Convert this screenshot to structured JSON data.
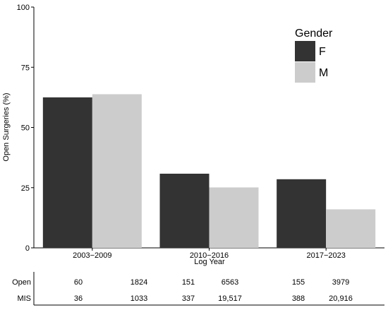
{
  "chart_data": {
    "type": "bar",
    "title": "",
    "xlabel": "Log Year",
    "ylabel": "Open Surgeries (%)",
    "ylim": [
      0,
      100
    ],
    "yticks": [
      0,
      25,
      50,
      75,
      100
    ],
    "categories": [
      "2003−2009",
      "2010−2016",
      "2017−2023"
    ],
    "legend": {
      "title": "Gender",
      "placement": "top-right"
    },
    "series": [
      {
        "name": "F",
        "color": "#333333",
        "values": [
          62.5,
          30.8,
          28.5
        ]
      },
      {
        "name": "M",
        "color": "#cccccc",
        "values": [
          63.8,
          25.1,
          16.0
        ]
      }
    ],
    "grid": false
  },
  "table": {
    "rows": [
      {
        "label": "Open",
        "values": [
          "60",
          "1824",
          "151",
          "6563",
          "155",
          "3979"
        ]
      },
      {
        "label": "MIS",
        "values": [
          "36",
          "1033",
          "337",
          "19,517",
          "388",
          "20,916"
        ]
      }
    ]
  }
}
